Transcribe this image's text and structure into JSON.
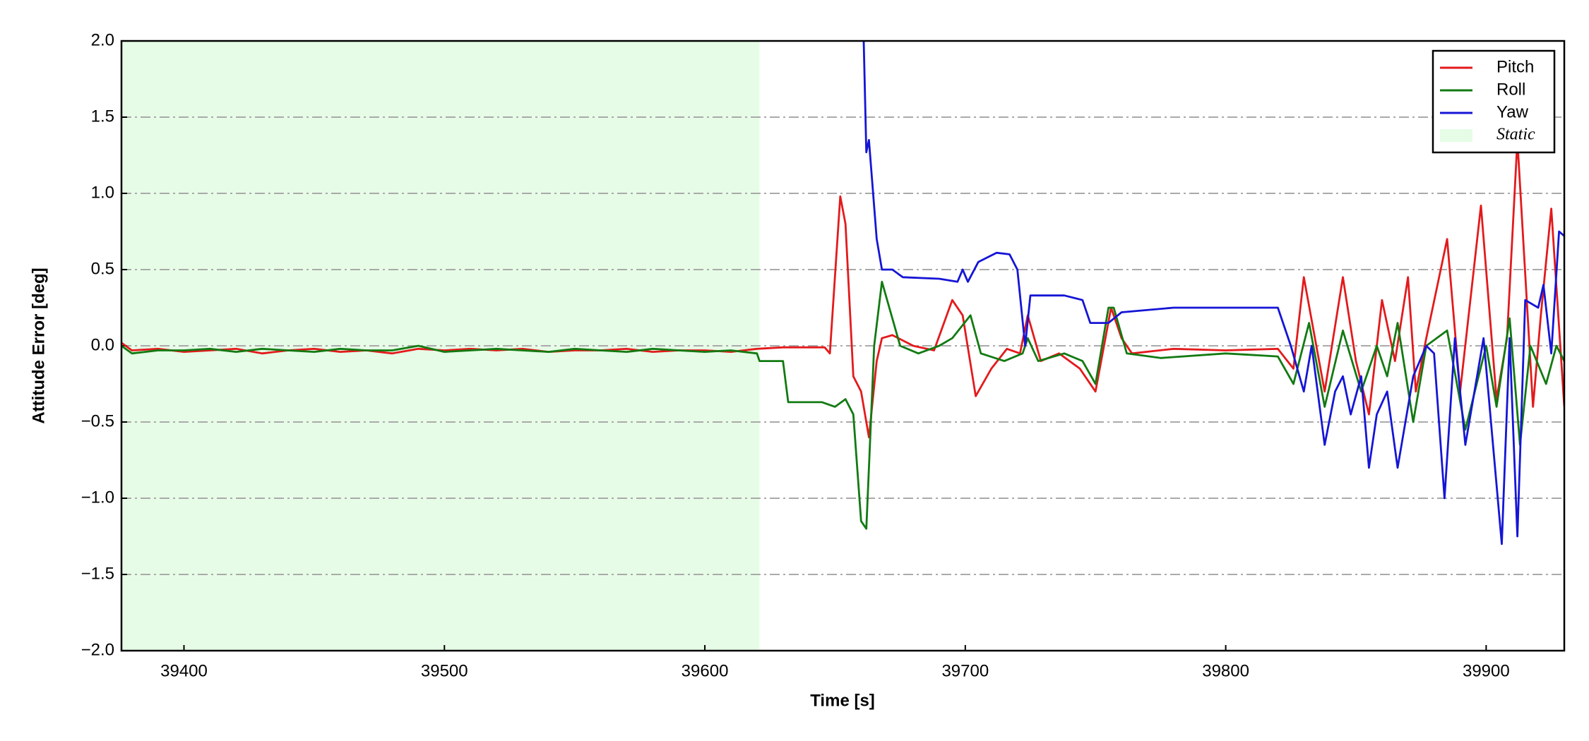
{
  "chart_data": {
    "type": "line",
    "xlabel": "Time [s]",
    "ylabel": "Attitude Error [deg]",
    "xlim": [
      39376,
      39930
    ],
    "ylim": [
      -2,
      2
    ],
    "xticks": [
      39400,
      39500,
      39600,
      39700,
      39800,
      39900
    ],
    "yticks": [
      {
        "value": -2,
        "label": "−2.0"
      },
      {
        "value": -1.5,
        "label": "−1.5"
      },
      {
        "value": -1,
        "label": "−1.0"
      },
      {
        "value": -0.5,
        "label": "−0.5"
      },
      {
        "value": 0,
        "label": "0.0"
      },
      0.5,
      {
        "value": 1,
        "label": "1.0"
      },
      1.5,
      {
        "value": 2,
        "label": "2.0"
      }
    ],
    "grid": true,
    "legend": "upper right",
    "spans": [
      {
        "name": "Static",
        "start": 39376,
        "end": 39621,
        "color": "#e6fce6"
      }
    ],
    "series": [
      {
        "name": "Pitch",
        "color": "#e31a1c",
        "x": [
          39376,
          39380,
          39390,
          39400,
          39410,
          39420,
          39430,
          39440,
          39450,
          39460,
          39470,
          39480,
          39490,
          39500,
          39510,
          39520,
          39530,
          39540,
          39550,
          39560,
          39570,
          39580,
          39590,
          39600,
          39610,
          39620,
          39630,
          39640,
          39646,
          39648,
          39652,
          39654,
          39657,
          39660,
          39663,
          39666,
          39668,
          39672,
          39680,
          39688,
          39695,
          39699,
          39704,
          39710,
          39716,
          39721,
          39724,
          39729,
          39736,
          39744,
          39750,
          39756,
          39760,
          39764,
          39780,
          39800,
          39820,
          39826,
          39830,
          39838,
          39845,
          39850,
          39855,
          39860,
          39865,
          39870,
          39873,
          39877,
          39885,
          39890,
          39898,
          39904,
          39908,
          39912,
          39918,
          39921,
          39925,
          39930
        ],
        "values": [
          0.02,
          -0.03,
          -0.02,
          -0.04,
          -0.03,
          -0.02,
          -0.05,
          -0.03,
          -0.02,
          -0.04,
          -0.03,
          -0.05,
          -0.02,
          -0.03,
          -0.02,
          -0.03,
          -0.02,
          -0.04,
          -0.03,
          -0.03,
          -0.02,
          -0.04,
          -0.03,
          -0.03,
          -0.04,
          -0.02,
          -0.01,
          -0.01,
          -0.01,
          -0.05,
          0.98,
          0.8,
          -0.2,
          -0.3,
          -0.6,
          -0.1,
          0.05,
          0.07,
          0.0,
          -0.03,
          0.3,
          0.2,
          -0.33,
          -0.15,
          -0.02,
          -0.05,
          0.2,
          -0.1,
          -0.05,
          -0.15,
          -0.3,
          0.25,
          0.05,
          -0.05,
          -0.02,
          -0.03,
          -0.02,
          -0.15,
          0.45,
          -0.3,
          0.45,
          -0.1,
          -0.45,
          0.3,
          -0.1,
          0.45,
          -0.3,
          0.05,
          0.7,
          -0.3,
          0.92,
          -0.35,
          0.05,
          1.35,
          -0.4,
          0.2,
          0.9,
          -0.4
        ]
      },
      {
        "name": "Roll",
        "color": "#127a12",
        "x": [
          39376,
          39380,
          39390,
          39400,
          39410,
          39420,
          39430,
          39440,
          39450,
          39460,
          39470,
          39480,
          39490,
          39500,
          39510,
          39520,
          39530,
          39540,
          39550,
          39560,
          39570,
          39580,
          39590,
          39600,
          39610,
          39620,
          39621,
          39630,
          39632,
          39645,
          39650,
          39654,
          39657,
          39660,
          39662,
          39665,
          39668,
          39675,
          39682,
          39690,
          39695,
          39702,
          39706,
          39715,
          39722,
          39724,
          39728,
          39738,
          39745,
          39750,
          39755,
          39757,
          39762,
          39775,
          39800,
          39820,
          39826,
          39832,
          39838,
          39845,
          39852,
          39858,
          39862,
          39866,
          39872,
          39877,
          39885,
          39892,
          39900,
          39904,
          39909,
          39913,
          39917,
          39923,
          39927,
          39930
        ],
        "values": [
          0.0,
          -0.05,
          -0.03,
          -0.03,
          -0.02,
          -0.04,
          -0.02,
          -0.03,
          -0.04,
          -0.02,
          -0.03,
          -0.03,
          0.0,
          -0.04,
          -0.03,
          -0.02,
          -0.03,
          -0.04,
          -0.02,
          -0.03,
          -0.04,
          -0.02,
          -0.03,
          -0.04,
          -0.03,
          -0.05,
          -0.1,
          -0.1,
          -0.37,
          -0.37,
          -0.4,
          -0.35,
          -0.45,
          -1.15,
          -1.2,
          0.0,
          0.42,
          0.0,
          -0.05,
          0.0,
          0.05,
          0.2,
          -0.05,
          -0.1,
          -0.05,
          0.05,
          -0.1,
          -0.05,
          -0.1,
          -0.25,
          0.25,
          0.25,
          -0.05,
          -0.08,
          -0.05,
          -0.07,
          -0.25,
          0.15,
          -0.4,
          0.1,
          -0.3,
          0.0,
          -0.2,
          0.15,
          -0.5,
          0.0,
          0.1,
          -0.55,
          0.0,
          -0.4,
          0.18,
          -0.65,
          0.0,
          -0.25,
          0.0,
          -0.1
        ]
      },
      {
        "name": "Yaw",
        "color": "#1515d6",
        "x": [
          39661,
          39662,
          39663,
          39666,
          39668,
          39672,
          39676,
          39690,
          39697,
          39699,
          39701,
          39705,
          39712,
          39717,
          39720,
          39723,
          39725,
          39738,
          39745,
          39748,
          39755,
          39760,
          39780,
          39800,
          39820,
          39825,
          39830,
          39833,
          39838,
          39842,
          39845,
          39848,
          39852,
          39855,
          39858,
          39862,
          39866,
          39872,
          39877,
          39880,
          39884,
          39888,
          39892,
          39899,
          39906,
          39909,
          39912,
          39915,
          39920,
          39922,
          39925,
          39928,
          39930
        ],
        "values": [
          2.0,
          1.27,
          1.35,
          0.7,
          0.5,
          0.5,
          0.45,
          0.44,
          0.42,
          0.5,
          0.42,
          0.55,
          0.61,
          0.6,
          0.5,
          0.0,
          0.33,
          0.33,
          0.3,
          0.15,
          0.15,
          0.22,
          0.25,
          0.25,
          0.25,
          0.0,
          -0.3,
          0.0,
          -0.65,
          -0.3,
          -0.2,
          -0.45,
          -0.2,
          -0.8,
          -0.45,
          -0.3,
          -0.8,
          -0.2,
          0.0,
          -0.05,
          -1.0,
          0.05,
          -0.65,
          0.05,
          -1.3,
          0.05,
          -1.25,
          0.3,
          0.25,
          0.4,
          -0.05,
          0.75,
          0.72
        ]
      }
    ]
  }
}
